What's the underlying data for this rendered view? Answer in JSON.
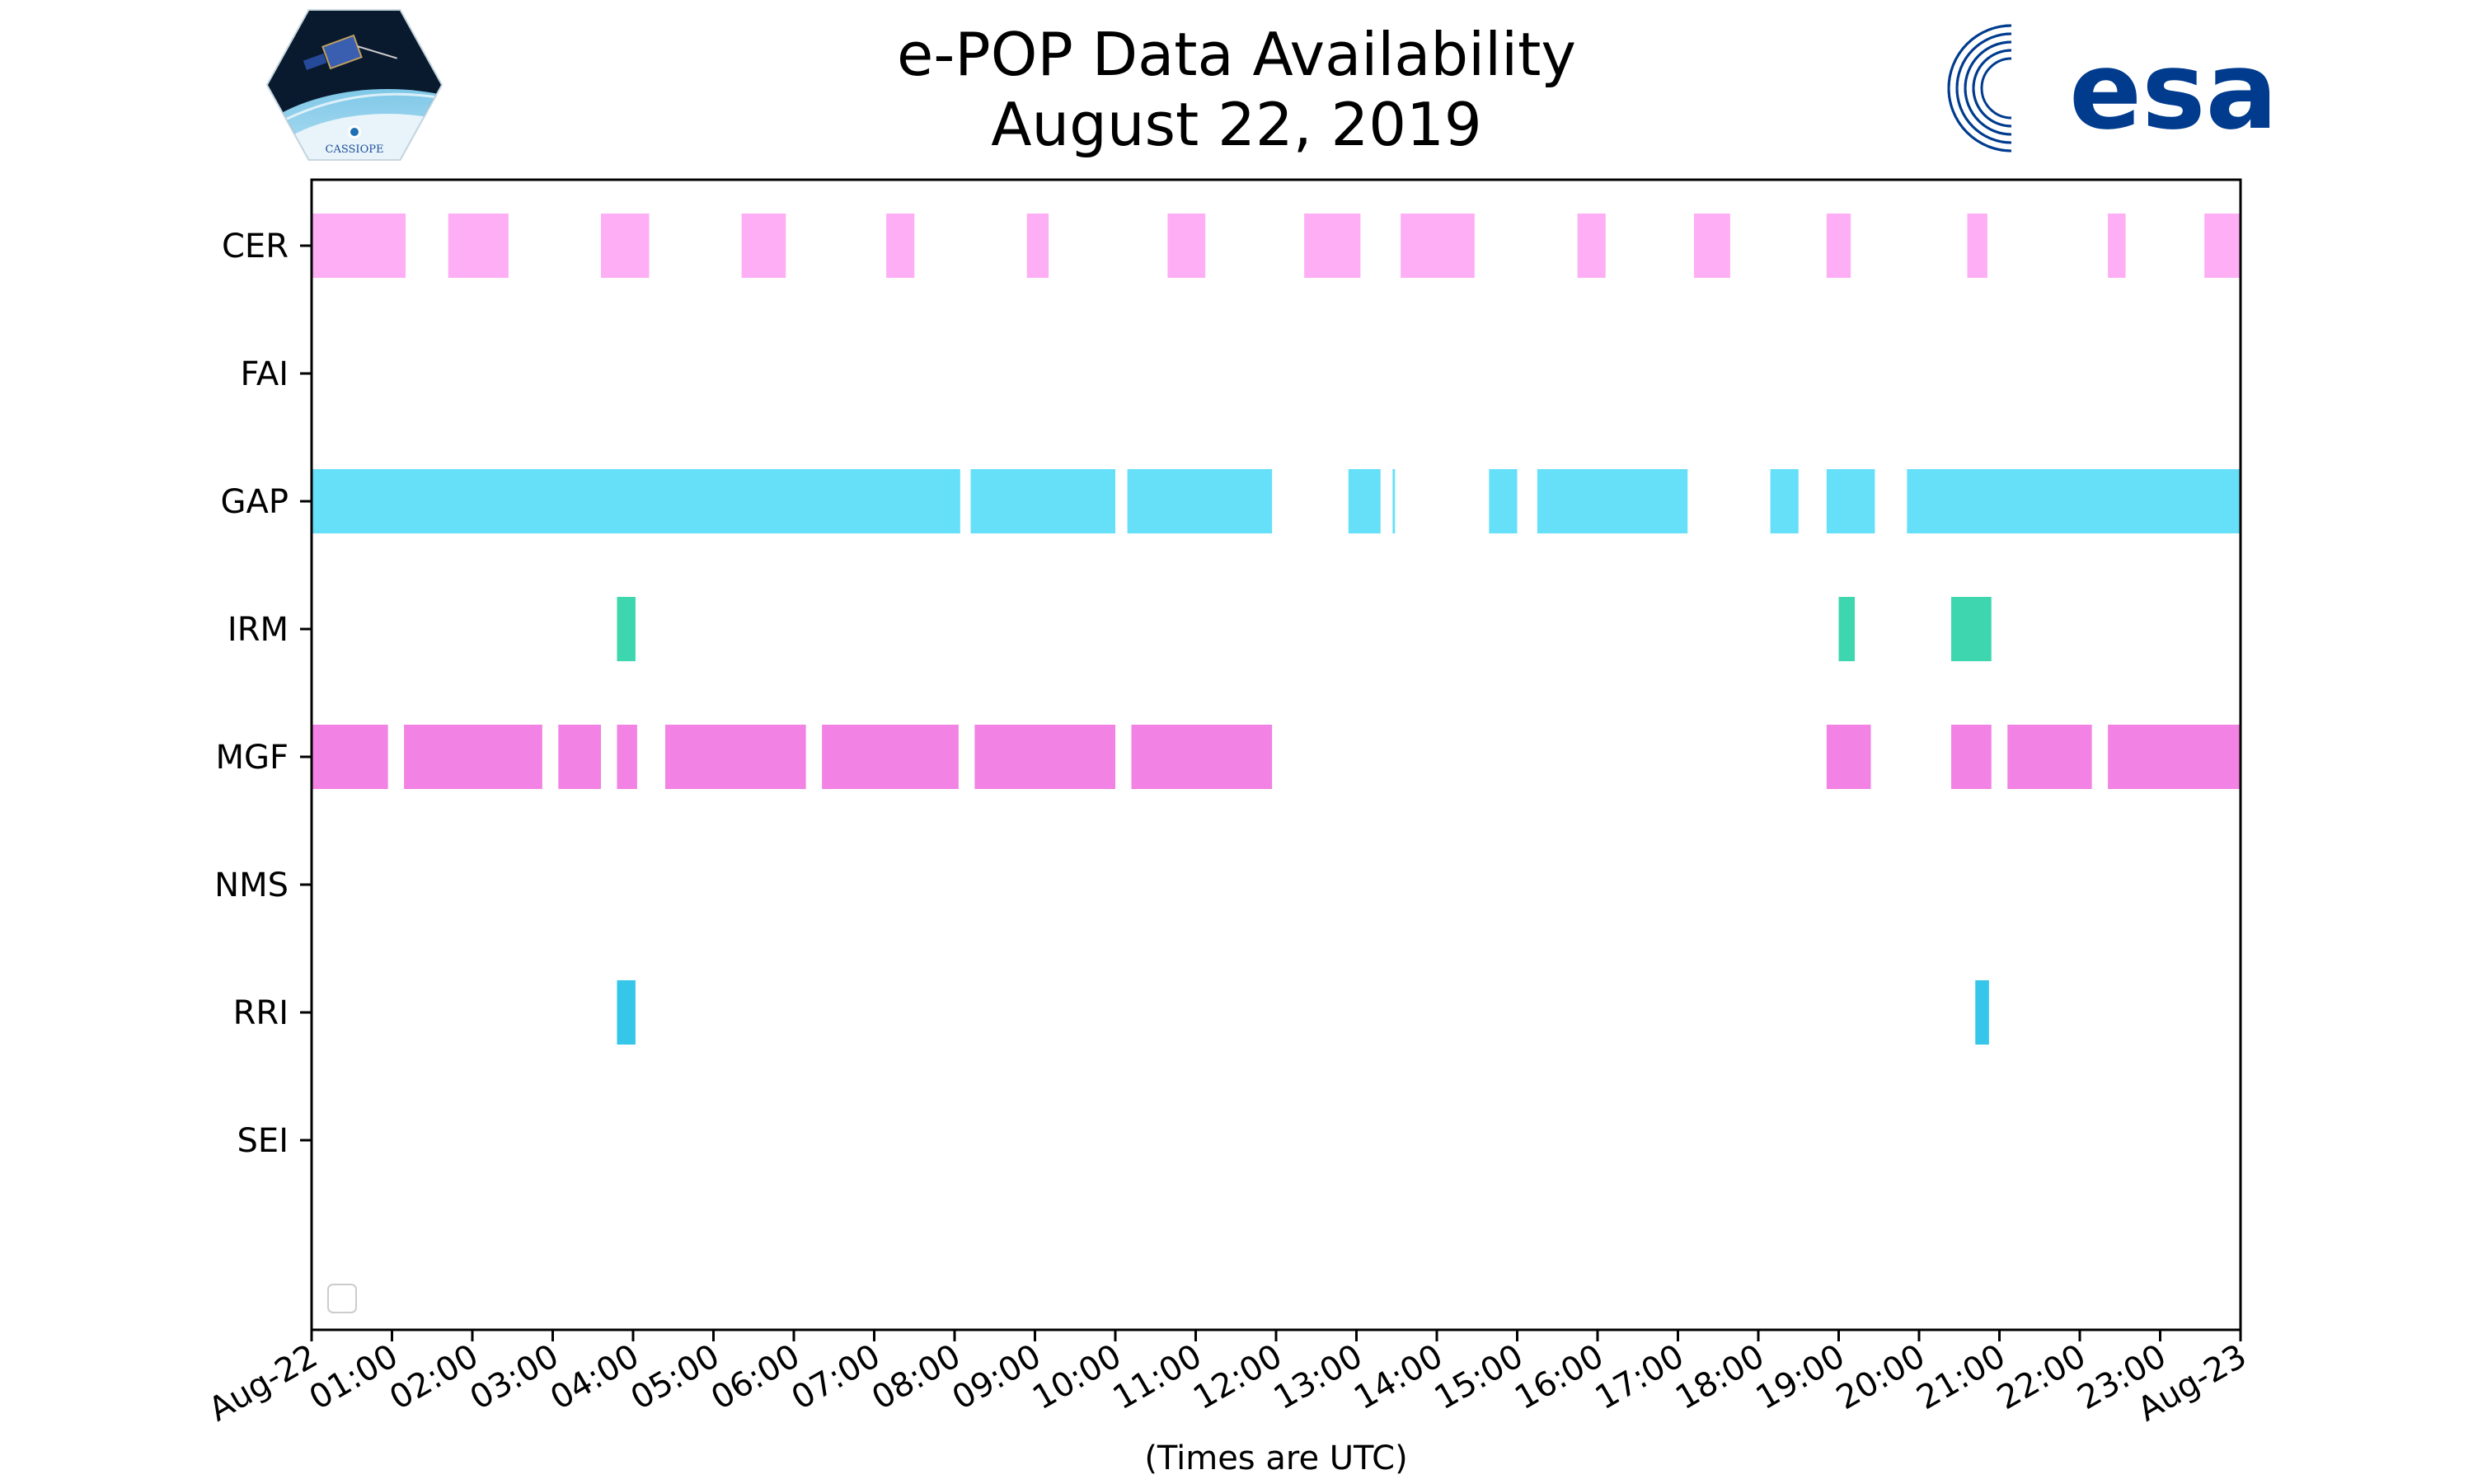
{
  "chart_data": {
    "type": "timeline",
    "title": "e-POP Data Availability",
    "subtitle": "August 22, 2019",
    "xlabel": "(Times are UTC)",
    "ylabel": "",
    "x_range_hours": [
      0,
      24
    ],
    "x_tick_labels": [
      "Aug-22",
      "01:00",
      "02:00",
      "03:00",
      "04:00",
      "05:00",
      "06:00",
      "07:00",
      "08:00",
      "09:00",
      "10:00",
      "11:00",
      "12:00",
      "13:00",
      "14:00",
      "15:00",
      "16:00",
      "17:00",
      "18:00",
      "19:00",
      "20:00",
      "21:00",
      "22:00",
      "23:00",
      "Aug-23"
    ],
    "categories": [
      "CER",
      "FAI",
      "GAP",
      "IRM",
      "MGF",
      "NMS",
      "RRI",
      "SEI"
    ],
    "series": [
      {
        "name": "CER",
        "color": "#fdaef5",
        "intervals": [
          [
            0,
            1.17
          ],
          [
            1.7,
            2.45
          ],
          [
            3.6,
            4.2
          ],
          [
            5.35,
            5.9
          ],
          [
            7.15,
            7.5
          ],
          [
            8.9,
            9.17
          ],
          [
            10.65,
            11.12
          ],
          [
            12.35,
            13.05
          ],
          [
            13.55,
            14.47
          ],
          [
            15.75,
            16.1
          ],
          [
            17.2,
            17.65
          ],
          [
            18.85,
            19.15
          ],
          [
            20.6,
            20.85
          ],
          [
            22.35,
            22.57
          ],
          [
            23.55,
            24
          ]
        ]
      },
      {
        "name": "FAI",
        "color": "#888888",
        "intervals": []
      },
      {
        "name": "GAP",
        "color": "#66dff9",
        "intervals": [
          [
            0,
            8.07
          ],
          [
            8.2,
            10.0
          ],
          [
            10.15,
            11.95
          ],
          [
            12.9,
            13.3
          ],
          [
            13.45,
            13.48
          ],
          [
            14.65,
            15.0
          ],
          [
            15.25,
            17.12
          ],
          [
            18.15,
            18.5
          ],
          [
            18.85,
            19.45
          ],
          [
            19.85,
            24
          ]
        ]
      },
      {
        "name": "IRM",
        "color": "#3ed6ae",
        "intervals": [
          [
            3.8,
            4.03
          ],
          [
            19.0,
            19.2
          ],
          [
            20.4,
            20.9
          ]
        ]
      },
      {
        "name": "MGF",
        "color": "#f282e3",
        "intervals": [
          [
            0,
            0.95
          ],
          [
            1.15,
            2.87
          ],
          [
            3.07,
            3.6
          ],
          [
            3.8,
            4.05
          ],
          [
            4.4,
            6.15
          ],
          [
            6.35,
            8.05
          ],
          [
            8.25,
            10.0
          ],
          [
            10.2,
            11.95
          ],
          [
            18.85,
            19.4
          ],
          [
            20.4,
            20.9
          ],
          [
            21.1,
            22.15
          ],
          [
            22.35,
            24
          ]
        ]
      },
      {
        "name": "NMS",
        "color": "#888888",
        "intervals": []
      },
      {
        "name": "RRI",
        "color": "#35c6ea",
        "intervals": [
          [
            3.8,
            4.03
          ],
          [
            20.7,
            20.87
          ]
        ]
      },
      {
        "name": "SEI",
        "color": "#888888",
        "intervals": []
      }
    ],
    "legend": "lower-left",
    "legend_entries": []
  },
  "logos": {
    "left": "CASSIOPE",
    "right": "esa"
  },
  "colors": {
    "esa_blue": "#003b8e",
    "axis": "#000000"
  }
}
